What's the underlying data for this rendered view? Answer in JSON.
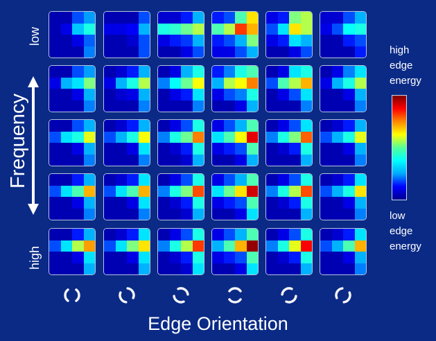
{
  "labels": {
    "y_low": "low",
    "y_high": "high",
    "y_axis": "Frequency",
    "x_axis": "Edge Orientation"
  },
  "legend": {
    "high_lines": [
      "high",
      "edge",
      "energy"
    ],
    "low_lines": [
      "low",
      "edge",
      "energy"
    ],
    "colormap": "jet"
  },
  "icons": [
    "edge-orientation-1-icon",
    "edge-orientation-2-icon",
    "edge-orientation-3-icon",
    "edge-orientation-4-icon",
    "edge-orientation-5-icon",
    "edge-orientation-6-icon"
  ],
  "grid": {
    "rows": 5,
    "cols": 6,
    "row_labels": [
      "low",
      "",
      "",
      "",
      "high"
    ],
    "energy": [
      [
        [
          [
            0.05,
            0.05,
            0.2,
            0.28
          ],
          [
            0.05,
            0.1,
            0.32,
            0.4
          ],
          [
            0.05,
            0.05,
            0.1,
            0.22
          ],
          [
            0.05,
            0.05,
            0.05,
            0.25
          ]
        ],
        [
          [
            0.05,
            0.05,
            0.05,
            0.2
          ],
          [
            0.1,
            0.1,
            0.12,
            0.3
          ],
          [
            0.05,
            0.05,
            0.08,
            0.2
          ],
          [
            0.05,
            0.05,
            0.05,
            0.2
          ]
        ],
        [
          [
            0.08,
            0.08,
            0.15,
            0.3
          ],
          [
            0.4,
            0.42,
            0.48,
            0.55
          ],
          [
            0.1,
            0.15,
            0.18,
            0.3
          ],
          [
            0.05,
            0.05,
            0.1,
            0.2
          ]
        ],
        [
          [
            0.15,
            0.2,
            0.45,
            0.65
          ],
          [
            0.45,
            0.55,
            0.82,
            0.7
          ],
          [
            0.15,
            0.2,
            0.3,
            0.5
          ],
          [
            0.1,
            0.1,
            0.2,
            0.3
          ]
        ],
        [
          [
            0.1,
            0.15,
            0.5,
            0.55
          ],
          [
            0.2,
            0.35,
            0.65,
            0.55
          ],
          [
            0.1,
            0.15,
            0.35,
            0.3
          ],
          [
            0.05,
            0.05,
            0.1,
            0.2
          ]
        ],
        [
          [
            0.08,
            0.08,
            0.2,
            0.3
          ],
          [
            0.1,
            0.2,
            0.38,
            0.4
          ],
          [
            0.05,
            0.05,
            0.15,
            0.2
          ],
          [
            0.05,
            0.05,
            0.05,
            0.15
          ]
        ]
      ],
      [
        [
          [
            0.05,
            0.05,
            0.2,
            0.28
          ],
          [
            0.1,
            0.3,
            0.35,
            0.5
          ],
          [
            0.05,
            0.05,
            0.1,
            0.3
          ],
          [
            0.05,
            0.05,
            0.05,
            0.25
          ]
        ],
        [
          [
            0.05,
            0.08,
            0.15,
            0.3
          ],
          [
            0.1,
            0.3,
            0.4,
            0.55
          ],
          [
            0.05,
            0.08,
            0.1,
            0.3
          ],
          [
            0.05,
            0.05,
            0.05,
            0.25
          ]
        ],
        [
          [
            0.05,
            0.1,
            0.3,
            0.4
          ],
          [
            0.25,
            0.38,
            0.48,
            0.62
          ],
          [
            0.05,
            0.1,
            0.15,
            0.35
          ],
          [
            0.05,
            0.05,
            0.05,
            0.25
          ]
        ],
        [
          [
            0.15,
            0.25,
            0.4,
            0.45
          ],
          [
            0.3,
            0.55,
            0.62,
            0.75
          ],
          [
            0.1,
            0.2,
            0.25,
            0.4
          ],
          [
            0.05,
            0.05,
            0.1,
            0.3
          ]
        ],
        [
          [
            0.05,
            0.1,
            0.35,
            0.4
          ],
          [
            0.2,
            0.45,
            0.55,
            0.7
          ],
          [
            0.05,
            0.1,
            0.2,
            0.35
          ],
          [
            0.05,
            0.05,
            0.05,
            0.25
          ]
        ],
        [
          [
            0.05,
            0.1,
            0.25,
            0.35
          ],
          [
            0.1,
            0.3,
            0.4,
            0.55
          ],
          [
            0.05,
            0.05,
            0.1,
            0.3
          ],
          [
            0.05,
            0.05,
            0.05,
            0.25
          ]
        ]
      ],
      [
        [
          [
            0.05,
            0.05,
            0.2,
            0.3
          ],
          [
            0.2,
            0.35,
            0.4,
            0.6
          ],
          [
            0.05,
            0.05,
            0.1,
            0.3
          ],
          [
            0.05,
            0.05,
            0.05,
            0.25
          ]
        ],
        [
          [
            0.05,
            0.08,
            0.15,
            0.3
          ],
          [
            0.2,
            0.3,
            0.4,
            0.62
          ],
          [
            0.05,
            0.05,
            0.1,
            0.35
          ],
          [
            0.05,
            0.05,
            0.05,
            0.25
          ]
        ],
        [
          [
            0.05,
            0.1,
            0.2,
            0.4
          ],
          [
            0.25,
            0.4,
            0.48,
            0.75
          ],
          [
            0.05,
            0.08,
            0.15,
            0.4
          ],
          [
            0.05,
            0.05,
            0.08,
            0.3
          ]
        ],
        [
          [
            0.1,
            0.2,
            0.3,
            0.45
          ],
          [
            0.35,
            0.45,
            0.62,
            0.9
          ],
          [
            0.1,
            0.15,
            0.2,
            0.45
          ],
          [
            0.05,
            0.05,
            0.1,
            0.3
          ]
        ],
        [
          [
            0.05,
            0.1,
            0.2,
            0.35
          ],
          [
            0.25,
            0.4,
            0.5,
            0.78
          ],
          [
            0.05,
            0.08,
            0.15,
            0.4
          ],
          [
            0.05,
            0.05,
            0.05,
            0.3
          ]
        ],
        [
          [
            0.05,
            0.08,
            0.15,
            0.3
          ],
          [
            0.2,
            0.3,
            0.4,
            0.6
          ],
          [
            0.05,
            0.05,
            0.1,
            0.3
          ],
          [
            0.05,
            0.05,
            0.05,
            0.25
          ]
        ]
      ],
      [
        [
          [
            0.05,
            0.05,
            0.15,
            0.3
          ],
          [
            0.2,
            0.35,
            0.45,
            0.7
          ],
          [
            0.05,
            0.05,
            0.1,
            0.3
          ],
          [
            0.05,
            0.05,
            0.05,
            0.25
          ]
        ],
        [
          [
            0.05,
            0.08,
            0.15,
            0.35
          ],
          [
            0.2,
            0.35,
            0.45,
            0.7
          ],
          [
            0.05,
            0.05,
            0.1,
            0.35
          ],
          [
            0.05,
            0.05,
            0.05,
            0.25
          ]
        ],
        [
          [
            0.05,
            0.1,
            0.2,
            0.4
          ],
          [
            0.25,
            0.4,
            0.5,
            0.8
          ],
          [
            0.05,
            0.08,
            0.15,
            0.4
          ],
          [
            0.05,
            0.05,
            0.08,
            0.3
          ]
        ],
        [
          [
            0.1,
            0.2,
            0.3,
            0.45
          ],
          [
            0.35,
            0.48,
            0.65,
            0.92
          ],
          [
            0.1,
            0.15,
            0.2,
            0.45
          ],
          [
            0.05,
            0.05,
            0.1,
            0.35
          ]
        ],
        [
          [
            0.05,
            0.1,
            0.2,
            0.4
          ],
          [
            0.25,
            0.4,
            0.55,
            0.8
          ],
          [
            0.05,
            0.08,
            0.15,
            0.4
          ],
          [
            0.05,
            0.05,
            0.05,
            0.3
          ]
        ],
        [
          [
            0.05,
            0.08,
            0.15,
            0.35
          ],
          [
            0.2,
            0.3,
            0.4,
            0.65
          ],
          [
            0.05,
            0.05,
            0.1,
            0.3
          ],
          [
            0.05,
            0.05,
            0.05,
            0.25
          ]
        ]
      ],
      [
        [
          [
            0.05,
            0.05,
            0.15,
            0.3
          ],
          [
            0.2,
            0.35,
            0.55,
            0.72
          ],
          [
            0.05,
            0.05,
            0.1,
            0.35
          ],
          [
            0.05,
            0.05,
            0.05,
            0.3
          ]
        ],
        [
          [
            0.05,
            0.08,
            0.15,
            0.35
          ],
          [
            0.2,
            0.35,
            0.5,
            0.65
          ],
          [
            0.05,
            0.05,
            0.1,
            0.35
          ],
          [
            0.05,
            0.05,
            0.05,
            0.3
          ]
        ],
        [
          [
            0.05,
            0.1,
            0.2,
            0.4
          ],
          [
            0.25,
            0.4,
            0.55,
            0.82
          ],
          [
            0.05,
            0.08,
            0.15,
            0.4
          ],
          [
            0.05,
            0.05,
            0.08,
            0.35
          ]
        ],
        [
          [
            0.1,
            0.2,
            0.3,
            0.45
          ],
          [
            0.3,
            0.45,
            0.7,
            0.98
          ],
          [
            0.1,
            0.15,
            0.2,
            0.45
          ],
          [
            0.05,
            0.05,
            0.1,
            0.35
          ]
        ],
        [
          [
            0.05,
            0.1,
            0.2,
            0.4
          ],
          [
            0.25,
            0.4,
            0.6,
            0.88
          ],
          [
            0.05,
            0.08,
            0.15,
            0.4
          ],
          [
            0.05,
            0.05,
            0.05,
            0.3
          ]
        ],
        [
          [
            0.05,
            0.08,
            0.15,
            0.35
          ],
          [
            0.2,
            0.3,
            0.45,
            0.7
          ],
          [
            0.05,
            0.05,
            0.1,
            0.3
          ],
          [
            0.05,
            0.05,
            0.05,
            0.25
          ]
        ]
      ]
    ]
  }
}
